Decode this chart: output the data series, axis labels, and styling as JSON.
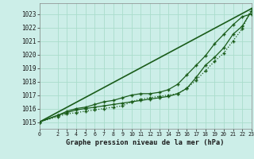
{
  "title": "Graphe pression niveau de la mer (hPa)",
  "bg_color": "#cceee8",
  "grid_color": "#aaddcc",
  "line_color": "#1a5c1a",
  "ylim": [
    1014.5,
    1023.8
  ],
  "xlim": [
    0,
    23
  ],
  "yticks": [
    1015,
    1016,
    1017,
    1018,
    1019,
    1020,
    1021,
    1022,
    1023
  ],
  "xticks": [
    0,
    2,
    3,
    4,
    5,
    6,
    7,
    8,
    9,
    10,
    11,
    12,
    13,
    14,
    15,
    16,
    17,
    18,
    19,
    20,
    21,
    22,
    23
  ],
  "series": [
    {
      "x": [
        0,
        23
      ],
      "y": [
        1015.0,
        1023.4
      ],
      "marker": null,
      "markersize": 0,
      "linestyle": "-",
      "linewidth": 1.2
    },
    {
      "x": [
        0,
        2,
        3,
        4,
        5,
        6,
        7,
        8,
        9,
        10,
        11,
        12,
        13,
        14,
        15,
        16,
        17,
        18,
        19,
        20,
        21,
        22,
        23
      ],
      "y": [
        1015.0,
        1015.4,
        1015.6,
        1015.7,
        1015.8,
        1015.9,
        1016.0,
        1016.1,
        1016.2,
        1016.5,
        1016.7,
        1016.8,
        1016.9,
        1017.0,
        1017.1,
        1017.5,
        1018.1,
        1018.8,
        1019.5,
        1020.1,
        1021.0,
        1021.9,
        1023.4
      ],
      "marker": "+",
      "markersize": 3.5,
      "linestyle": ":",
      "linewidth": 0.9
    },
    {
      "x": [
        0,
        2,
        3,
        4,
        5,
        6,
        7,
        8,
        9,
        10,
        11,
        12,
        13,
        14,
        15,
        16,
        17,
        18,
        19,
        20,
        21,
        22,
        23
      ],
      "y": [
        1015.0,
        1015.5,
        1015.7,
        1015.9,
        1016.0,
        1016.1,
        1016.2,
        1016.3,
        1016.4,
        1016.5,
        1016.6,
        1016.7,
        1016.8,
        1016.9,
        1017.1,
        1017.5,
        1018.3,
        1019.2,
        1019.8,
        1020.5,
        1021.5,
        1022.1,
        1023.2
      ],
      "marker": "+",
      "markersize": 3.5,
      "linestyle": "-",
      "linewidth": 0.9
    },
    {
      "x": [
        0,
        2,
        3,
        4,
        5,
        6,
        7,
        8,
        9,
        10,
        11,
        12,
        13,
        14,
        15,
        16,
        17,
        18,
        19,
        20,
        21,
        22,
        23
      ],
      "y": [
        1015.0,
        1015.5,
        1015.8,
        1016.0,
        1016.1,
        1016.3,
        1016.5,
        1016.6,
        1016.8,
        1017.0,
        1017.1,
        1017.1,
        1017.2,
        1017.4,
        1017.8,
        1018.5,
        1019.2,
        1019.9,
        1020.8,
        1021.5,
        1022.2,
        1022.8,
        1023.0
      ],
      "marker": "+",
      "markersize": 3.5,
      "linestyle": "-",
      "linewidth": 0.9
    }
  ]
}
